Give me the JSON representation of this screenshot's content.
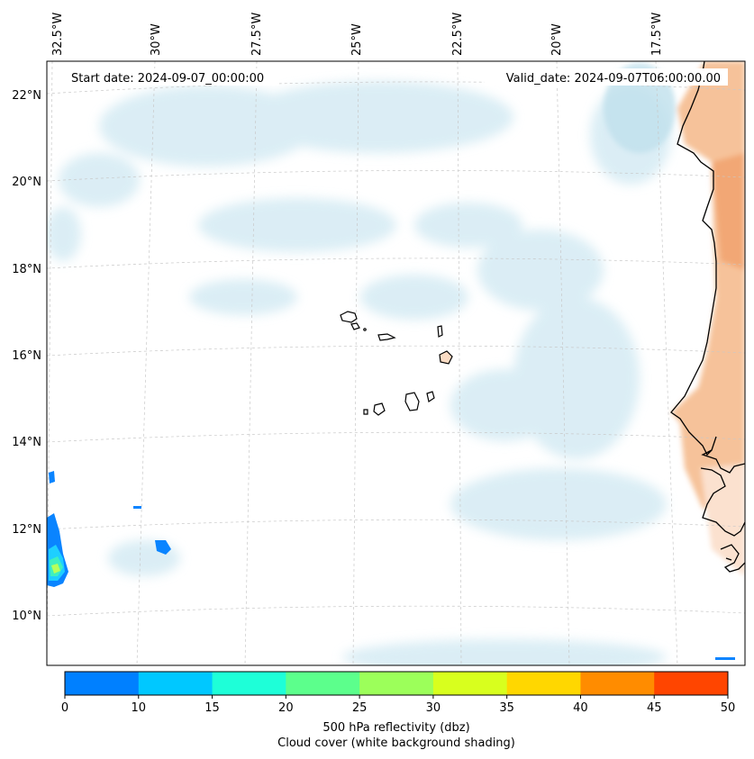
{
  "header": {
    "start_date": "Start date: 2024-09-07_00:00:00",
    "valid_date": "Valid_date: 2024-09-07T06:00:00.00"
  },
  "axes": {
    "longitude_labels": [
      "32.5°W",
      "30°W",
      "27.5°W",
      "25°W",
      "22.5°W",
      "20°W",
      "17.5°W"
    ],
    "latitude_labels": [
      "22°N",
      "20°N",
      "18°N",
      "16°N",
      "14°N",
      "12°N",
      "10°N"
    ]
  },
  "colorbar": {
    "ticks": [
      "0",
      "10",
      "15",
      "20",
      "25",
      "30",
      "35",
      "40",
      "45",
      "50"
    ],
    "colors": [
      "#0080ff",
      "#00c8ff",
      "#1effd8",
      "#5cff8c",
      "#9cff5a",
      "#d8ff1e",
      "#ffd700",
      "#ff8c00",
      "#ff4500"
    ],
    "label_line1": "500 hPa reflectivity (dbz)",
    "label_line2": "Cloud cover (white background shading)"
  },
  "colors": {
    "cloud": "#d4ecf4",
    "land_warm": "#f5b88a",
    "coast": "#000000",
    "grid": "#bbbbbb"
  }
}
